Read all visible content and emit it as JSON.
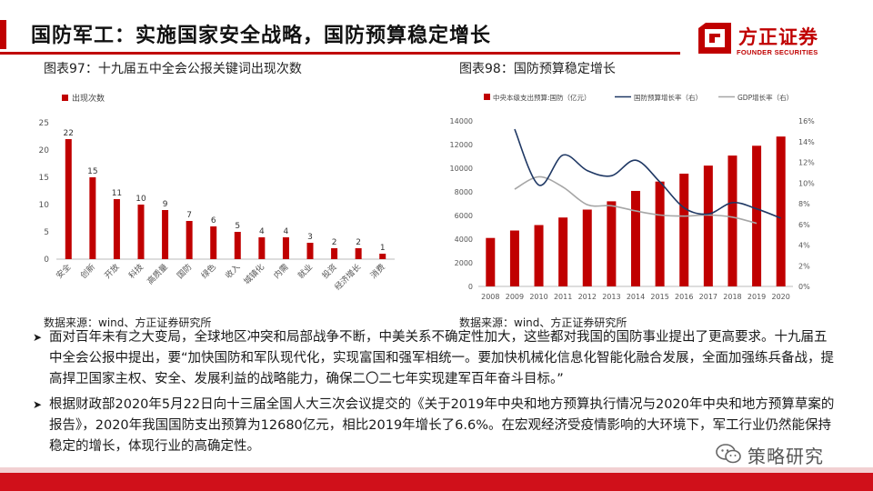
{
  "header": {
    "title": "国防军工：实施国家安全战略，国防预算稳定增长"
  },
  "logo": {
    "name": "方正证券",
    "subtitle": "FOUNDER SECURITIES"
  },
  "figures": [
    {
      "title": "图表97：十九届五中全会公报关键词出现次数",
      "source": "数据来源：wind、方正证券研究所"
    },
    {
      "title": "图表98：国防预算稳定增长",
      "source": "数据来源：wind、方正证券研究所"
    }
  ],
  "chart_data": [
    {
      "type": "bar",
      "title": "",
      "xlabel": "",
      "ylabel": "",
      "ylim": [
        0,
        25
      ],
      "yticks": [
        "0",
        "5",
        "10",
        "15",
        "20",
        "25"
      ],
      "legend": "top-left",
      "series": [
        {
          "name": "出现次数",
          "color": "#c00000"
        }
      ],
      "categories": [
        "安全",
        "创新",
        "开放",
        "科技",
        "高质量",
        "国防",
        "绿色",
        "收入",
        "城镇化",
        "内需",
        "就业",
        "投资",
        "经济增长",
        "消费"
      ],
      "values": [
        22,
        15,
        11,
        10,
        9,
        7,
        6,
        5,
        4,
        4,
        3,
        2,
        2,
        1
      ]
    },
    {
      "type": "bar",
      "title": "",
      "legend": "top",
      "xlabel": "",
      "ylabel": "",
      "categories": [
        "2008",
        "2009",
        "2010",
        "2011",
        "2012",
        "2013",
        "2014",
        "2015",
        "2016",
        "2017",
        "2018",
        "2019",
        "2020"
      ],
      "ylim": [
        0,
        14000
      ],
      "yticks": [
        "0",
        "2000",
        "4000",
        "6000",
        "8000",
        "10000",
        "12000",
        "14000"
      ],
      "y2lim": [
        0,
        16
      ],
      "y2ticks": [
        "0%",
        "2%",
        "4%",
        "6%",
        "8%",
        "10%",
        "12%",
        "14%",
        "16%"
      ],
      "series": [
        {
          "name": "中央本级支出预算:国防（亿元）",
          "kind": "bar",
          "axis": "left",
          "color": "#c00000",
          "values": [
            4100,
            4730,
            5190,
            5830,
            6500,
            7200,
            8080,
            8870,
            9540,
            10220,
            11070,
            11900,
            12680
          ]
        },
        {
          "name": "国防预算增长率（右）",
          "kind": "line",
          "axis": "right",
          "color": "#1f3864",
          "values": [
            null,
            15.2,
            9.8,
            12.7,
            11.2,
            10.7,
            12.2,
            10.1,
            7.6,
            7.0,
            8.1,
            7.5,
            6.6
          ]
        },
        {
          "name": "GDP增长率（右）",
          "kind": "line",
          "axis": "right",
          "color": "#a6a6a6",
          "values": [
            null,
            9.4,
            10.6,
            9.6,
            7.9,
            7.8,
            7.3,
            6.9,
            6.8,
            6.9,
            6.7,
            6.1,
            null
          ]
        }
      ]
    }
  ],
  "bullets": [
    "面对百年未有之大变局，全球地区冲突和局部战争不断，中美关系不确定性加大，这些都对我国的国防事业提出了更高要求。十九届五中全会公报中提出，要“加快国防和军队现代化，实现富国和强军相统一。要加快机械化信息化智能化融合发展，全面加强练兵备战，提高捍卫国家主权、安全、发展利益的战略能力，确保二〇二七年实现建军百年奋斗目标。”",
    "根据财政部2020年5月22日向十三届全国人大三次会议提交的《关于2019年中央和地方预算执行情况与2020年中央和地方预算草案的报告》，2020年我国国防支出预算为12680亿元，相比2019年增长了6.6%。在宏观经济受疫情影响的大环境下，军工行业仍然能保持稳定的增长，体现行业的高确定性。"
  ],
  "watermark": {
    "text": "策略研究",
    "icon": "wechat-icon"
  }
}
